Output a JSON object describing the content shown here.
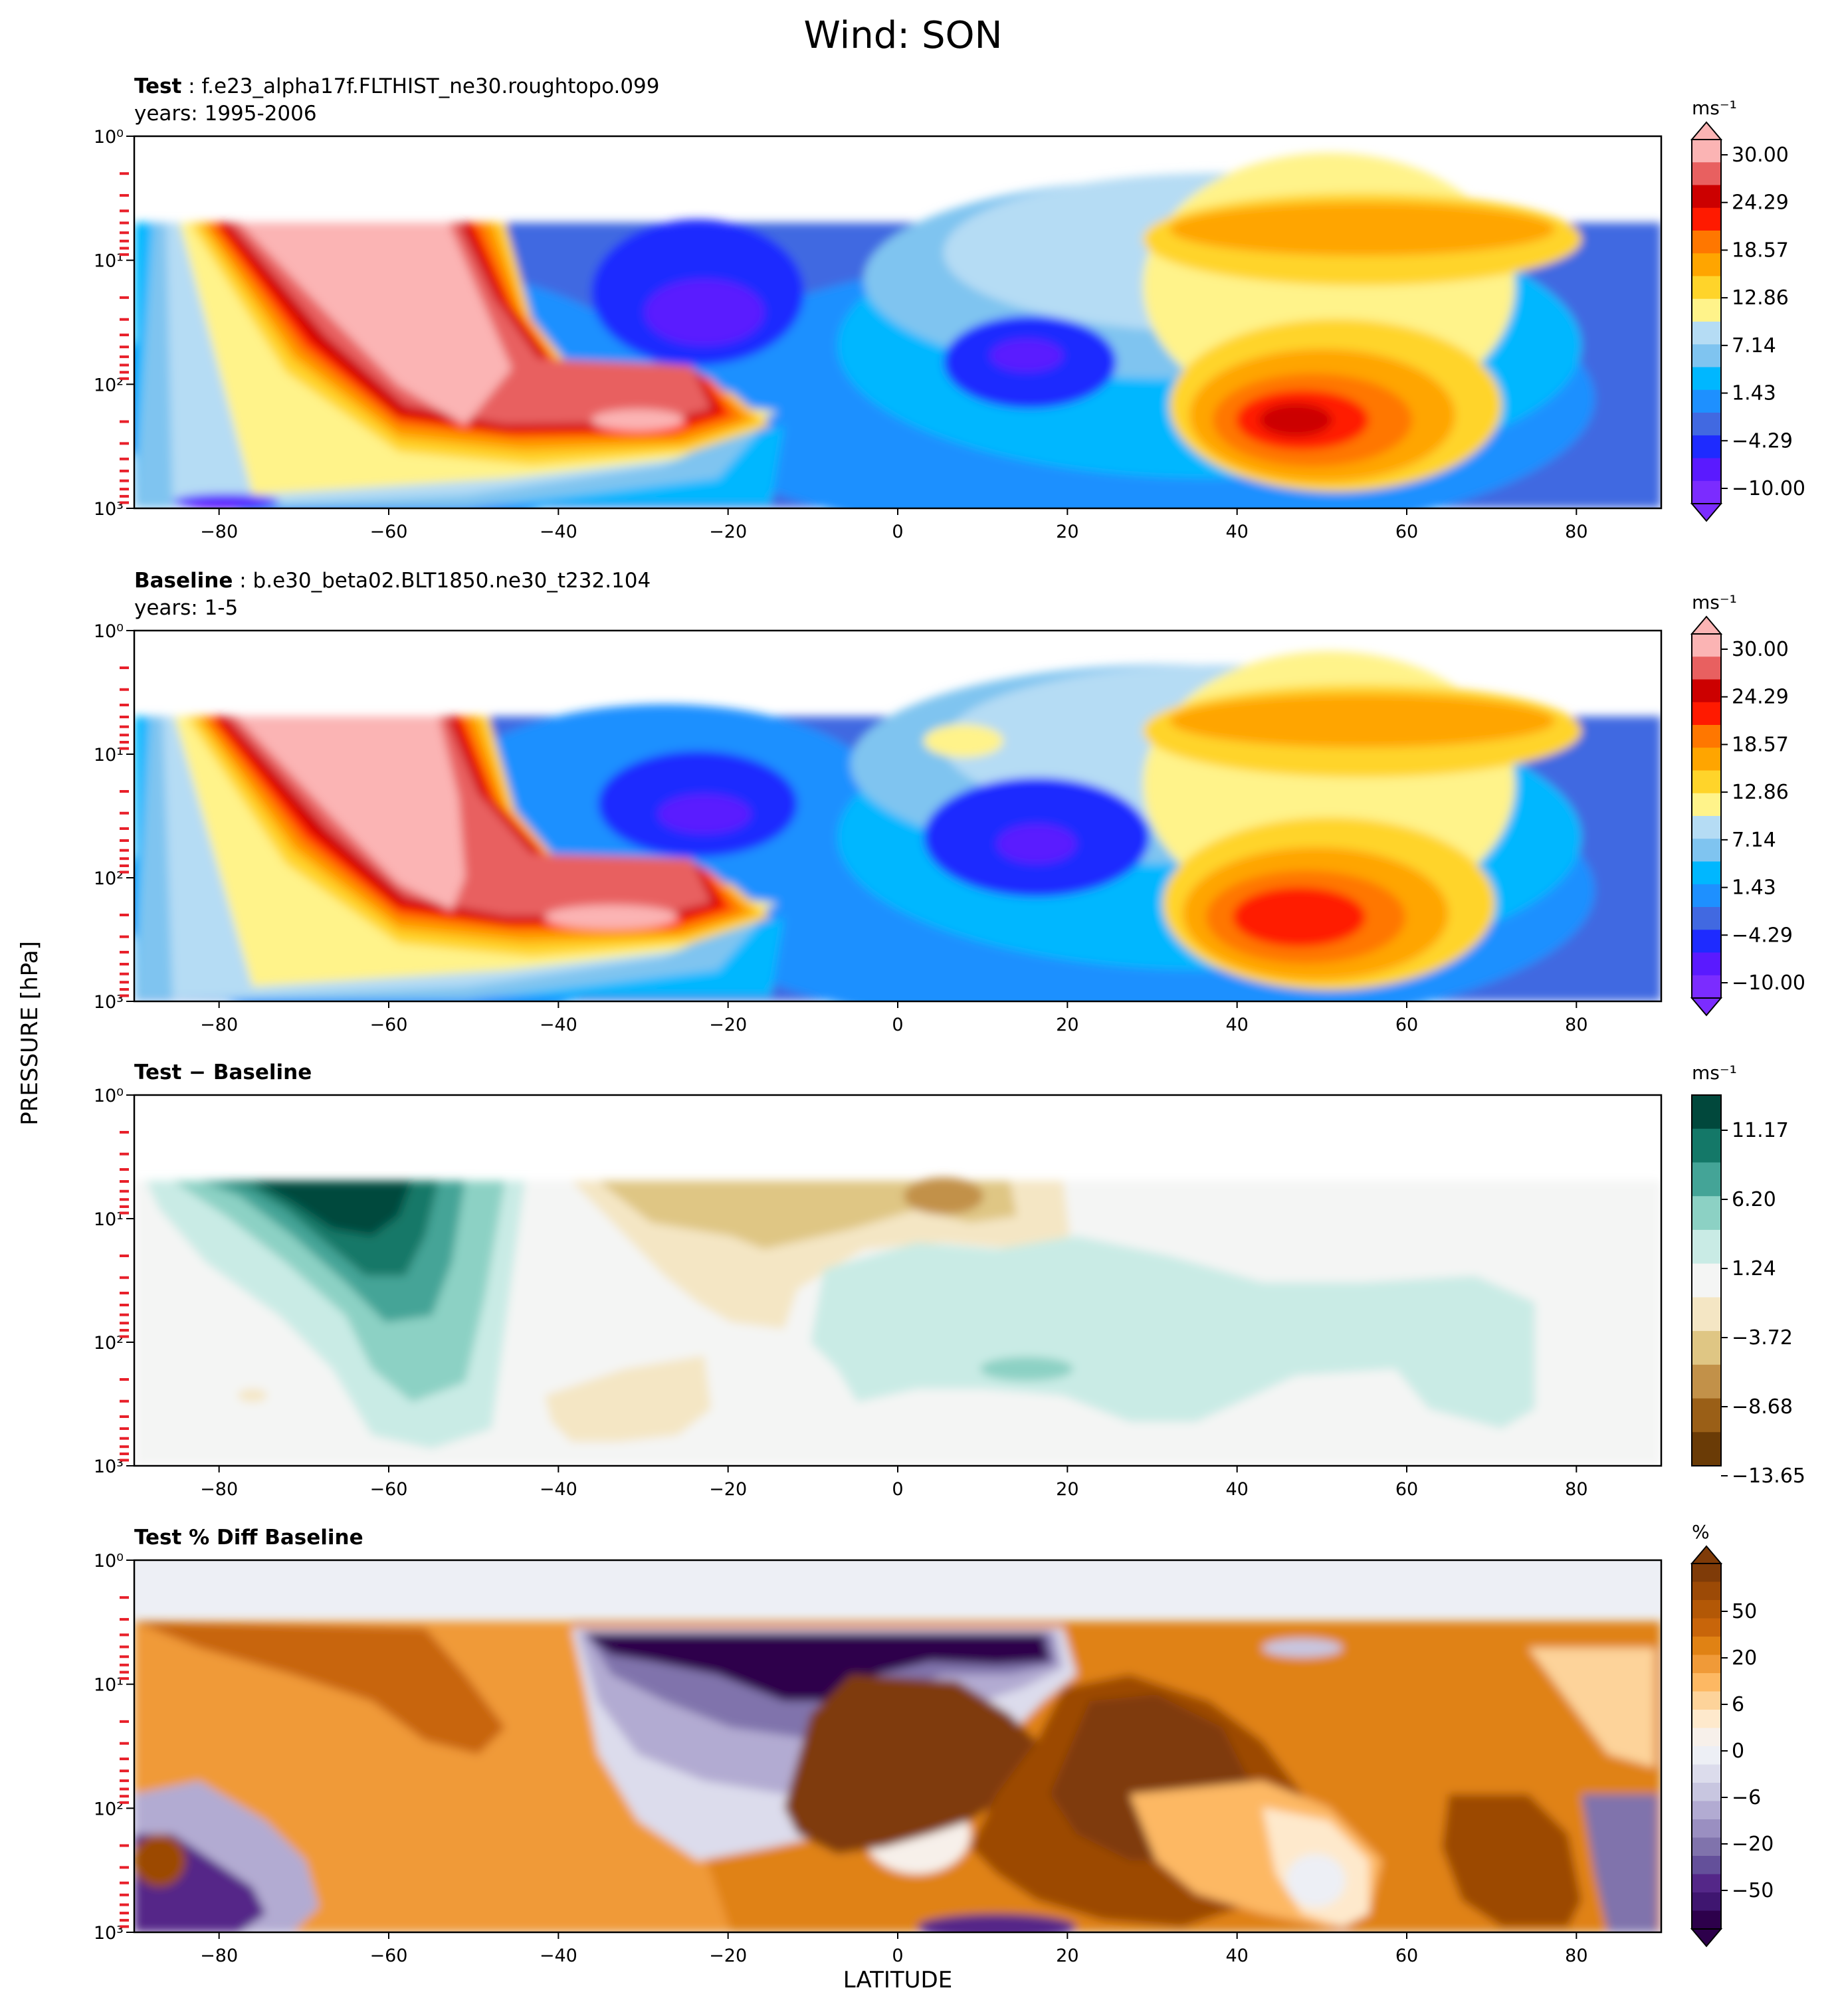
{
  "figure": {
    "title": "Wind: SON",
    "ylabel": "PRESSURE [hPa]",
    "xlabel": "LATITUDE"
  },
  "chart_data": [
    {
      "type": "heatmap",
      "title_bold": "Test",
      "title": "f.e23_alpha17f.FLTHIST_ne30.roughtopo.099",
      "subtitle": "years: 1995-2006",
      "x_ticks": [
        "−80",
        "−60",
        "−40",
        "−20",
        "0",
        "20",
        "40",
        "60",
        "80"
      ],
      "y_ticks": [
        "10⁰",
        "10¹",
        "10²",
        "10³"
      ],
      "xlim": [
        -90,
        90
      ],
      "ylim": [
        1000,
        1
      ],
      "y_scale": "log",
      "colorbar": {
        "unit": "ms⁻¹",
        "ticks": [
          "30.00",
          "24.29",
          "18.57",
          "12.86",
          "7.14",
          "1.43",
          "−4.29",
          "−10.00"
        ],
        "colors": [
          "#fbb4b4",
          "#e86060",
          "#cc0000",
          "#ff1a00",
          "#ff7700",
          "#ffa500",
          "#ffd42a",
          "#fff38a",
          "#b5dcf4",
          "#7fc4f0",
          "#00b7ff",
          "#1e90ff",
          "#4169e1",
          "#1e2bff",
          "#5a1aff",
          "#7b2cff"
        ]
      }
    },
    {
      "type": "heatmap",
      "title_bold": "Baseline",
      "title": "b.e30_beta02.BLT1850.ne30_t232.104",
      "subtitle": "years: 1-5",
      "x_ticks": [
        "−80",
        "−60",
        "−40",
        "−20",
        "0",
        "20",
        "40",
        "60",
        "80"
      ],
      "y_ticks": [
        "10⁰",
        "10¹",
        "10²",
        "10³"
      ],
      "xlim": [
        -90,
        90
      ],
      "ylim": [
        1000,
        1
      ],
      "y_scale": "log",
      "colorbar": {
        "unit": "ms⁻¹",
        "ticks": [
          "30.00",
          "24.29",
          "18.57",
          "12.86",
          "7.14",
          "1.43",
          "−4.29",
          "−10.00"
        ],
        "colors": [
          "#fbb4b4",
          "#e86060",
          "#cc0000",
          "#ff1a00",
          "#ff7700",
          "#ffa500",
          "#ffd42a",
          "#fff38a",
          "#b5dcf4",
          "#7fc4f0",
          "#00b7ff",
          "#1e90ff",
          "#4169e1",
          "#1e2bff",
          "#5a1aff",
          "#7b2cff"
        ]
      }
    },
    {
      "type": "heatmap",
      "title_bold": "Test − Baseline",
      "x_ticks": [
        "−80",
        "−60",
        "−40",
        "−20",
        "0",
        "20",
        "40",
        "60",
        "80"
      ],
      "y_ticks": [
        "10⁰",
        "10¹",
        "10²",
        "10³"
      ],
      "xlim": [
        -90,
        90
      ],
      "ylim": [
        1000,
        1
      ],
      "y_scale": "log",
      "colorbar": {
        "unit": "ms⁻¹",
        "ticks": [
          "11.17",
          "6.20",
          "1.24",
          "−3.72",
          "−8.68",
          "−13.65"
        ],
        "colors": [
          "#01483c",
          "#147868",
          "#44a497",
          "#8cd1c4",
          "#c9ebe5",
          "#f4f5f4",
          "#f4e6c4",
          "#dfc684",
          "#c29149",
          "#9a5f17",
          "#6a3b06"
        ]
      }
    },
    {
      "type": "heatmap",
      "title_bold": "Test % Diff Baseline",
      "x_ticks": [
        "−80",
        "−60",
        "−40",
        "−20",
        "0",
        "20",
        "40",
        "60",
        "80"
      ],
      "y_ticks": [
        "10⁰",
        "10¹",
        "10²",
        "10³"
      ],
      "xlim": [
        -90,
        90
      ],
      "ylim": [
        1000,
        1
      ],
      "y_scale": "log",
      "colorbar": {
        "unit": "%",
        "ticks": [
          "50",
          "20",
          "6",
          "0",
          "−6",
          "−20",
          "−50"
        ],
        "colors": [
          "#7f3b08",
          "#9c4a06",
          "#b35806",
          "#c8650a",
          "#e08214",
          "#f09a38",
          "#fdb863",
          "#fdd39a",
          "#fee9cc",
          "#f7f0ea",
          "#edeff5",
          "#dcdcec",
          "#c8c6e0",
          "#b2abd2",
          "#9a8fc1",
          "#8073ac",
          "#64509a",
          "#542788",
          "#3f1670",
          "#2d004b"
        ]
      }
    }
  ]
}
